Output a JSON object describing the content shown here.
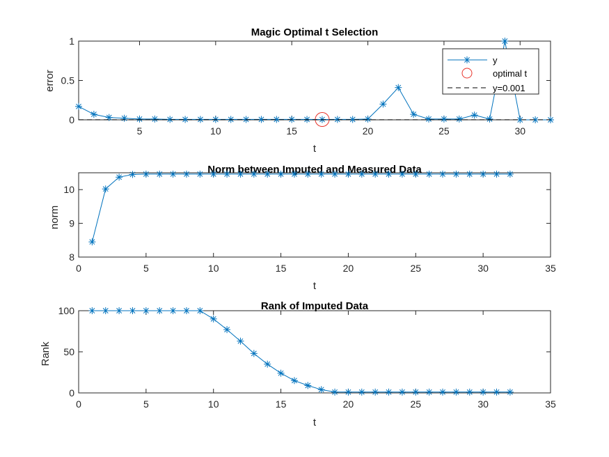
{
  "chart_data": [
    {
      "type": "line",
      "title": "Magic Optimal t Selection",
      "xlabel": "t",
      "ylabel": "error",
      "xlim": [
        1,
        32
      ],
      "ylim": [
        0,
        1
      ],
      "xticks": [
        5,
        10,
        15,
        20,
        25,
        30
      ],
      "yticks": [
        0,
        0.5,
        1
      ],
      "ytick_labels": [
        "0",
        "0.5",
        "1"
      ],
      "grid": false,
      "legend_position": "top-right",
      "series": [
        {
          "name": "y",
          "color": "#0072BD",
          "marker": "asterisk",
          "x": [
            1,
            2,
            3,
            4,
            5,
            6,
            7,
            8,
            9,
            10,
            11,
            12,
            13,
            14,
            15,
            16,
            17,
            18,
            19,
            20,
            21,
            22,
            23,
            24,
            25,
            26,
            27,
            28,
            29,
            30,
            31,
            32
          ],
          "values": [
            0.17,
            0.07,
            0.03,
            0.02,
            0.01,
            0.01,
            0.005,
            0.005,
            0.005,
            0.005,
            0.005,
            0.005,
            0.005,
            0.005,
            0.005,
            0.005,
            0.004,
            0.005,
            0.005,
            0.01,
            0.2,
            0.41,
            0.07,
            0.01,
            0.01,
            0.01,
            0.06,
            0.01,
            1.0,
            0.0,
            0.0,
            0.0
          ]
        },
        {
          "name": "optimal t",
          "color": "#E8332A",
          "marker": "circle",
          "x": [
            17
          ],
          "values": [
            0.004
          ]
        },
        {
          "name": "y=0.001",
          "color": "#000000",
          "style": "dashed",
          "x": [
            1,
            32
          ],
          "values": [
            0.001,
            0.001
          ]
        }
      ]
    },
    {
      "type": "line",
      "title": "Norm between Imputed and Measured Data",
      "xlabel": "t",
      "ylabel": "norm",
      "xlim": [
        0,
        35
      ],
      "ylim": [
        8,
        10.5
      ],
      "xticks": [
        0,
        5,
        10,
        15,
        20,
        25,
        30,
        35
      ],
      "yticks": [
        8,
        9,
        10
      ],
      "ytick_labels": [
        "8",
        "9",
        "10"
      ],
      "grid": false,
      "series": [
        {
          "color": "#0072BD",
          "marker": "asterisk",
          "x": [
            1,
            2,
            3,
            4,
            5,
            6,
            7,
            8,
            9,
            10,
            11,
            12,
            13,
            14,
            15,
            16,
            17,
            18,
            19,
            20,
            21,
            22,
            23,
            24,
            25,
            26,
            27,
            28,
            29,
            30,
            31,
            32
          ],
          "values": [
            8.45,
            10.02,
            10.37,
            10.45,
            10.46,
            10.46,
            10.46,
            10.46,
            10.46,
            10.46,
            10.46,
            10.46,
            10.46,
            10.46,
            10.46,
            10.46,
            10.46,
            10.46,
            10.46,
            10.46,
            10.46,
            10.46,
            10.46,
            10.46,
            10.46,
            10.46,
            10.46,
            10.46,
            10.46,
            10.46,
            10.46,
            10.46
          ]
        }
      ]
    },
    {
      "type": "line",
      "title": "Rank of Imputed Data",
      "xlabel": "t",
      "ylabel": "Rank",
      "xlim": [
        0,
        35
      ],
      "ylim": [
        0,
        100
      ],
      "xticks": [
        0,
        5,
        10,
        15,
        20,
        25,
        30,
        35
      ],
      "yticks": [
        0,
        50,
        100
      ],
      "ytick_labels": [
        "0",
        "50",
        "100"
      ],
      "grid": false,
      "series": [
        {
          "color": "#0072BD",
          "marker": "asterisk",
          "x": [
            1,
            2,
            3,
            4,
            5,
            6,
            7,
            8,
            9,
            10,
            11,
            12,
            13,
            14,
            15,
            16,
            17,
            18,
            19,
            20,
            21,
            22,
            23,
            24,
            25,
            26,
            27,
            28,
            29,
            30,
            31,
            32
          ],
          "values": [
            100,
            100,
            100,
            100,
            100,
            100,
            100,
            100,
            100,
            90,
            77,
            63,
            48,
            35,
            24,
            15,
            9,
            4,
            1,
            1,
            1,
            1,
            1,
            1,
            1,
            1,
            1,
            1,
            1,
            1,
            1,
            1
          ]
        }
      ]
    }
  ]
}
